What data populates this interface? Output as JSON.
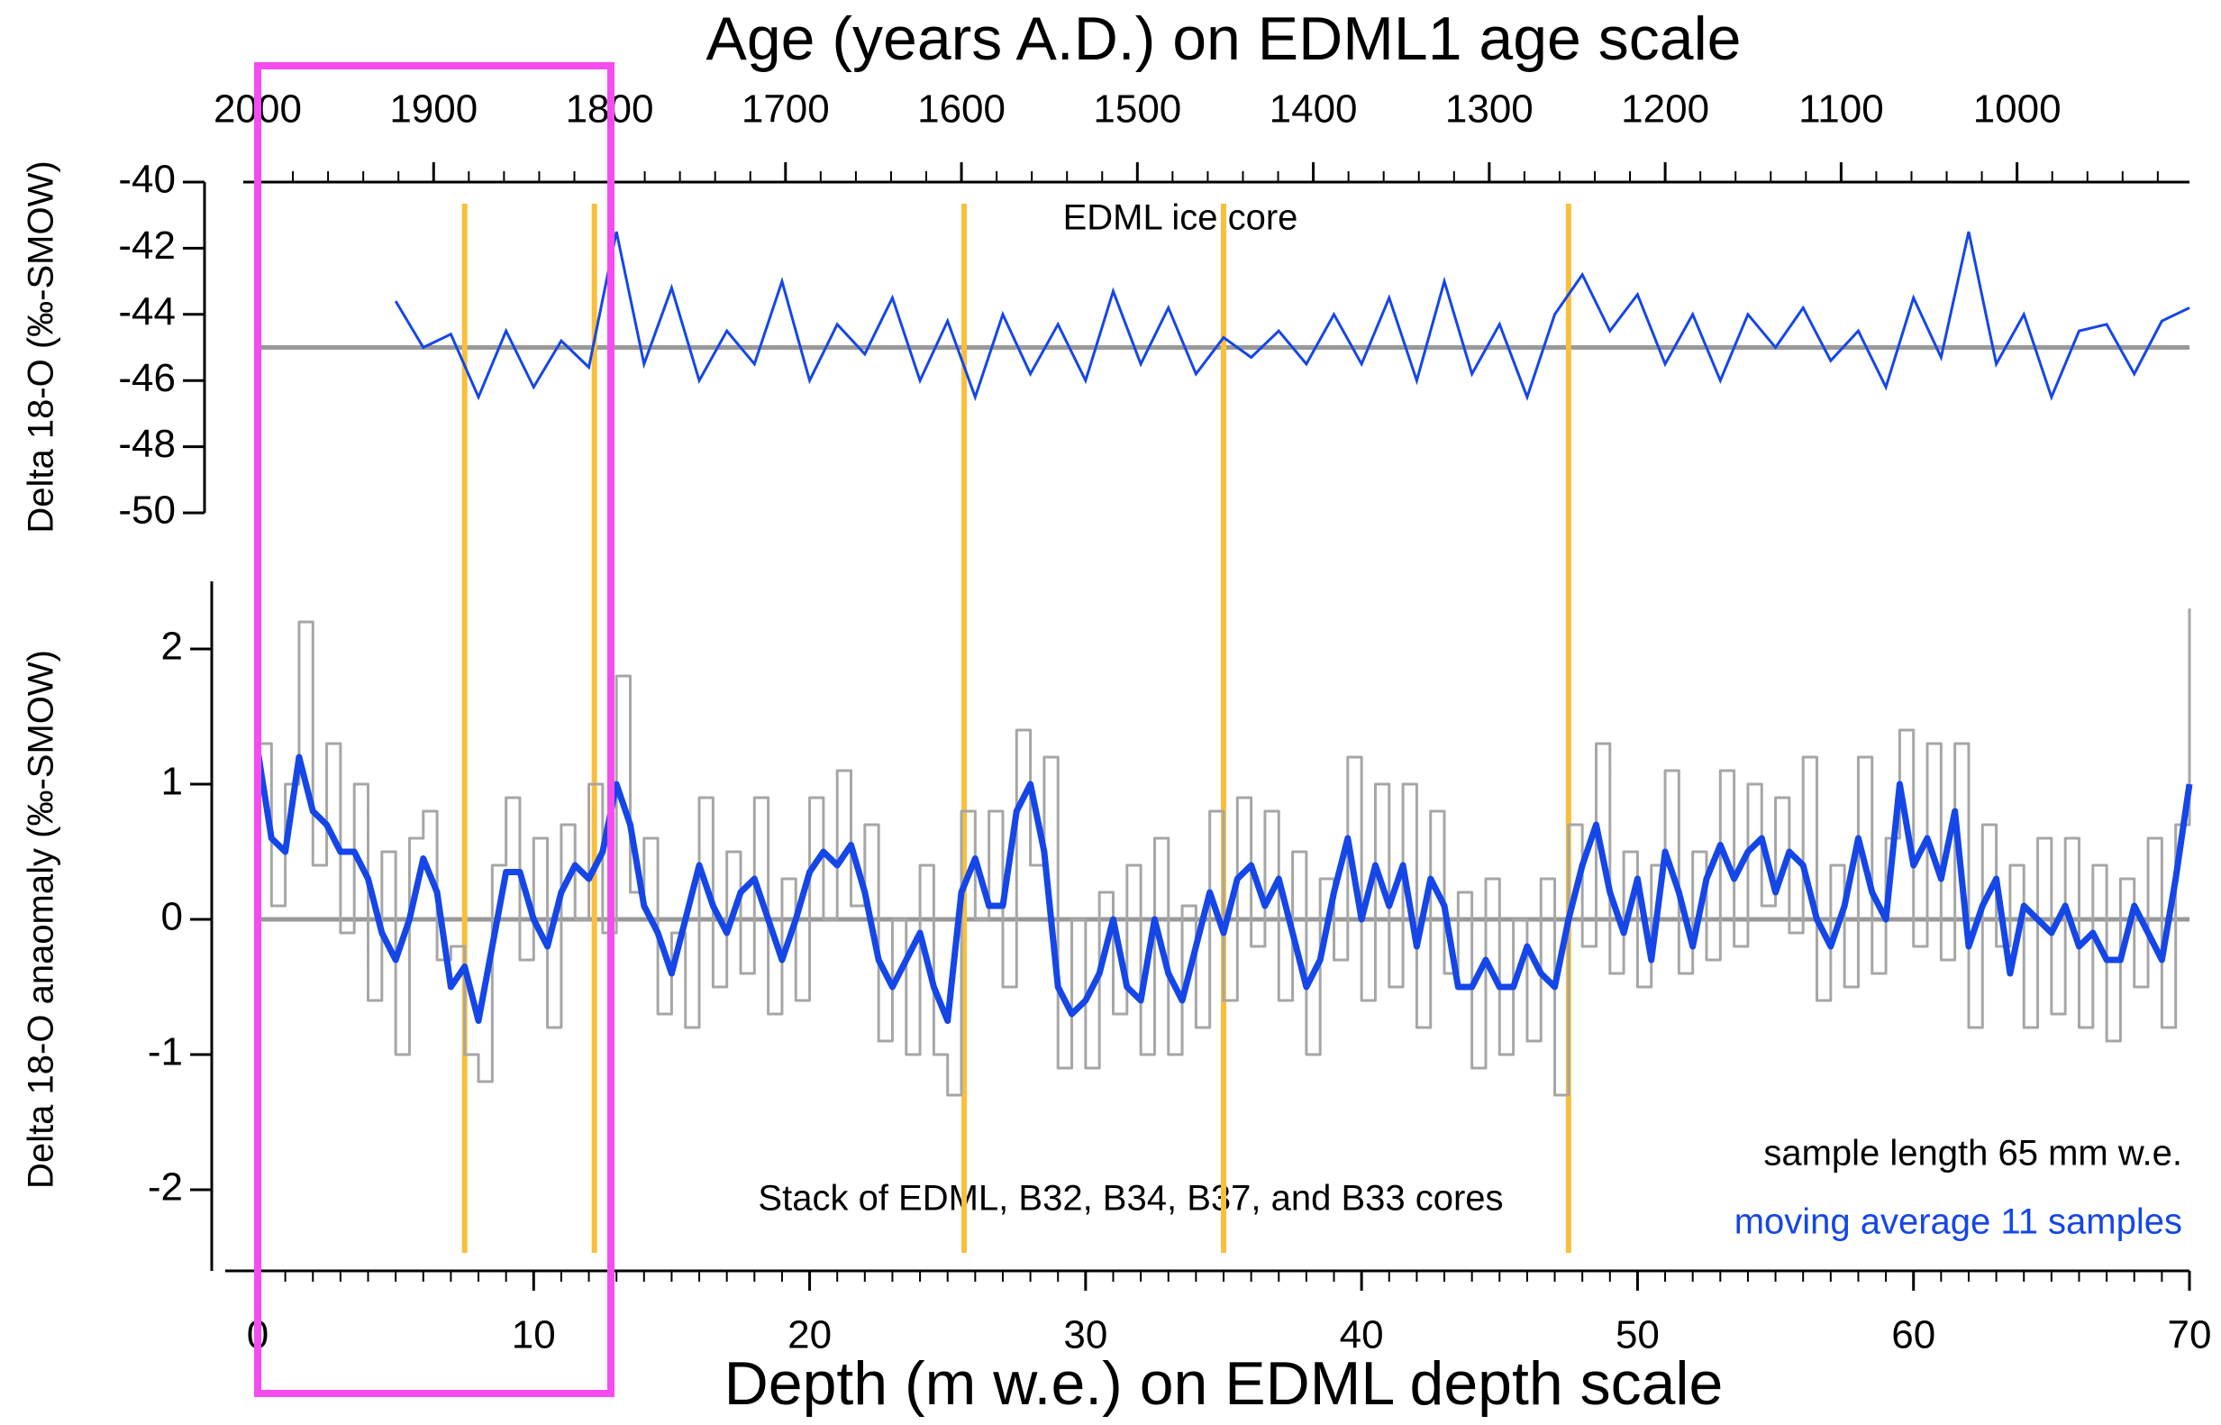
{
  "chart_data": [
    {
      "type": "line",
      "title": "Age (years A.D.) on EDML1 age scale",
      "ylabel": "Delta 18-O (‰-SMOW)",
      "annotation": "EDML ice core",
      "xlim": [
        0,
        70
      ],
      "x2lim": [
        2000,
        902
      ],
      "x2ticks": [
        2000,
        1900,
        1800,
        1700,
        1600,
        1500,
        1400,
        1300,
        1200,
        1100,
        1000
      ],
      "x2minor": 20,
      "ylim": [
        -50,
        -40
      ],
      "yticks": [
        -40,
        -42,
        -44,
        -46,
        -48,
        -50
      ],
      "reference_y": -45,
      "x": [
        5,
        6,
        7,
        8,
        9,
        10,
        11,
        12,
        13,
        14,
        15,
        16,
        17,
        18,
        19,
        20,
        21,
        22,
        23,
        24,
        25,
        26,
        27,
        28,
        29,
        30,
        31,
        32,
        33,
        34,
        35,
        36,
        37,
        38,
        39,
        40,
        41,
        42,
        43,
        44,
        45,
        46,
        47,
        48,
        49,
        50,
        51,
        52,
        53,
        54,
        55,
        56,
        57,
        58,
        59,
        60,
        61,
        62,
        63,
        64,
        65,
        66,
        67,
        68,
        69,
        70
      ],
      "series": [
        {
          "color": "#1446e8",
          "values": [
            -43.6,
            -45.0,
            -44.6,
            -46.5,
            -44.5,
            -46.2,
            -44.8,
            -45.6,
            -41.5,
            -45.5,
            -43.2,
            -46.0,
            -44.5,
            -45.5,
            -43.0,
            -46.0,
            -44.3,
            -45.2,
            -43.5,
            -46.0,
            -44.2,
            -46.5,
            -44.0,
            -45.8,
            -44.3,
            -46.0,
            -43.3,
            -45.5,
            -43.8,
            -45.8,
            -44.7,
            -45.3,
            -44.5,
            -45.5,
            -44.0,
            -45.5,
            -43.5,
            -46.0,
            -43.0,
            -45.8,
            -44.3,
            -46.5,
            -44.0,
            -42.8,
            -44.5,
            -43.4,
            -45.5,
            -44.0,
            -46.0,
            -44.0,
            -45.0,
            -43.8,
            -45.4,
            -44.5,
            -46.2,
            -43.5,
            -45.3,
            -41.5,
            -45.5,
            -44.0,
            -46.5,
            -44.5,
            -44.3,
            -45.8,
            -44.2,
            -43.8
          ]
        }
      ]
    },
    {
      "type": "step-line",
      "xlabel": "Depth (m w.e.) on EDML depth scale",
      "ylabel": "Delta 18-O anaomaly (‰-SMOW)",
      "annotation": "Stack of  EDML, B32, B34, B37, and B33 cores",
      "xlim": [
        0,
        70
      ],
      "xticks": [
        0,
        10,
        20,
        30,
        40,
        50,
        60,
        70
      ],
      "xminor": 1,
      "ylim": [
        -2.6,
        2.5
      ],
      "yticks": [
        2,
        1,
        0,
        -1,
        -2
      ],
      "reference_y": 0,
      "reference_lines": {
        "color": "#f9bf3c",
        "x": [
          7.5,
          12.2,
          25.6,
          35,
          47.5
        ]
      },
      "x": [
        0,
        0.5,
        1,
        1.5,
        2,
        2.5,
        3,
        3.5,
        4,
        4.5,
        5,
        5.5,
        6,
        6.5,
        7,
        7.5,
        8,
        8.5,
        9,
        9.5,
        10,
        10.5,
        11,
        11.5,
        12,
        12.5,
        13,
        13.5,
        14,
        14.5,
        15,
        15.5,
        16,
        16.5,
        17,
        17.5,
        18,
        18.5,
        19,
        19.5,
        20,
        20.5,
        21,
        21.5,
        22,
        22.5,
        23,
        23.5,
        24,
        24.5,
        25,
        25.5,
        26,
        26.5,
        27,
        27.5,
        28,
        28.5,
        29,
        29.5,
        30,
        30.5,
        31,
        31.5,
        32,
        32.5,
        33,
        33.5,
        34,
        34.5,
        35,
        35.5,
        36,
        36.5,
        37,
        37.5,
        38,
        38.5,
        39,
        39.5,
        40,
        40.5,
        41,
        41.5,
        42,
        42.5,
        43,
        43.5,
        44,
        44.5,
        45,
        45.5,
        46,
        46.5,
        47,
        47.5,
        48,
        48.5,
        49,
        49.5,
        50,
        50.5,
        51,
        51.5,
        52,
        52.5,
        53,
        53.5,
        54,
        54.5,
        55,
        55.5,
        56,
        56.5,
        57,
        57.5,
        58,
        58.5,
        59,
        59.5,
        60,
        60.5,
        61,
        61.5,
        62,
        62.5,
        63,
        63.5,
        64,
        64.5,
        65,
        65.5,
        66,
        66.5,
        67,
        67.5,
        68,
        68.5,
        69,
        69.5,
        70
      ],
      "series": [
        {
          "name": "sample length 65 mm w.e.",
          "color": "#a6a6a6",
          "label_color": "#000000",
          "style": "step",
          "values": [
            1.3,
            0.1,
            1.0,
            2.2,
            0.4,
            1.3,
            -0.1,
            1.0,
            -0.6,
            0.5,
            -1.0,
            0.6,
            0.8,
            -0.3,
            -0.2,
            -1.0,
            -1.2,
            0.4,
            0.9,
            -0.3,
            0.6,
            -0.8,
            0.7,
            0.0,
            1.0,
            -0.1,
            1.8,
            0.2,
            0.6,
            -0.7,
            -0.1,
            -0.8,
            0.9,
            -0.5,
            0.5,
            -0.4,
            0.9,
            -0.7,
            0.3,
            -0.6,
            0.9,
            0.0,
            1.1,
            0.1,
            0.7,
            -0.9,
            0.0,
            -1.0,
            0.4,
            -1.0,
            -1.3,
            0.8,
            0.0,
            0.8,
            -0.5,
            1.4,
            0.4,
            1.2,
            -1.1,
            0.0,
            -1.1,
            0.2,
            -0.7,
            0.4,
            -1.0,
            0.6,
            -1.0,
            0.1,
            -0.8,
            0.8,
            -0.6,
            0.9,
            -0.2,
            0.8,
            -0.6,
            0.5,
            -1.0,
            0.3,
            -0.3,
            1.2,
            -0.6,
            1.0,
            -0.5,
            1.0,
            -0.8,
            0.8,
            -0.4,
            0.2,
            -1.1,
            0.3,
            -1.0,
            0.0,
            -0.9,
            0.3,
            -1.3,
            0.7,
            -0.2,
            1.3,
            -0.4,
            0.5,
            -0.5,
            0.4,
            1.1,
            -0.4,
            0.5,
            -0.3,
            1.1,
            -0.2,
            1.0,
            0.1,
            0.9,
            -0.1,
            1.2,
            -0.6,
            0.4,
            -0.5,
            1.2,
            -0.4,
            0.6,
            1.4,
            -0.2,
            1.3,
            -0.3,
            1.3,
            -0.8,
            0.7,
            -0.2,
            0.4,
            -0.8,
            0.6,
            -0.7,
            0.6,
            -0.8,
            0.4,
            -0.9,
            0.3,
            -0.5,
            0.6,
            -0.8,
            0.7,
            2.3
          ]
        },
        {
          "name": "moving average 11 samples",
          "color": "#1446e8",
          "label_color": "#1446e8",
          "style": "smooth",
          "values": [
            1.25,
            0.6,
            0.5,
            1.2,
            0.8,
            0.7,
            0.5,
            0.5,
            0.3,
            -0.1,
            -0.3,
            0.0,
            0.45,
            0.2,
            -0.5,
            -0.35,
            -0.75,
            -0.2,
            0.35,
            0.35,
            0.0,
            -0.2,
            0.2,
            0.4,
            0.3,
            0.5,
            1.0,
            0.7,
            0.1,
            -0.1,
            -0.4,
            0.0,
            0.4,
            0.1,
            -0.1,
            0.2,
            0.3,
            0.0,
            -0.3,
            0.0,
            0.35,
            0.5,
            0.4,
            0.55,
            0.2,
            -0.3,
            -0.5,
            -0.3,
            -0.1,
            -0.5,
            -0.75,
            0.2,
            0.45,
            0.1,
            0.1,
            0.8,
            1.0,
            0.5,
            -0.5,
            -0.7,
            -0.6,
            -0.4,
            0.0,
            -0.5,
            -0.6,
            0.0,
            -0.4,
            -0.6,
            -0.2,
            0.2,
            -0.1,
            0.3,
            0.4,
            0.1,
            0.3,
            -0.1,
            -0.5,
            -0.3,
            0.2,
            0.6,
            0.0,
            0.4,
            0.1,
            0.4,
            -0.2,
            0.3,
            0.1,
            -0.5,
            -0.5,
            -0.3,
            -0.5,
            -0.5,
            -0.2,
            -0.4,
            -0.5,
            0.0,
            0.4,
            0.7,
            0.2,
            -0.1,
            0.3,
            -0.3,
            0.5,
            0.2,
            -0.2,
            0.3,
            0.55,
            0.3,
            0.5,
            0.6,
            0.2,
            0.5,
            0.4,
            0.0,
            -0.2,
            0.1,
            0.6,
            0.2,
            0.0,
            1.0,
            0.4,
            0.6,
            0.3,
            0.8,
            -0.2,
            0.1,
            0.3,
            -0.4,
            0.1,
            0.0,
            -0.1,
            0.1,
            -0.2,
            -0.1,
            -0.3,
            -0.3,
            0.1,
            -0.1,
            -0.3,
            0.3,
            1.0
          ]
        }
      ]
    }
  ]
}
